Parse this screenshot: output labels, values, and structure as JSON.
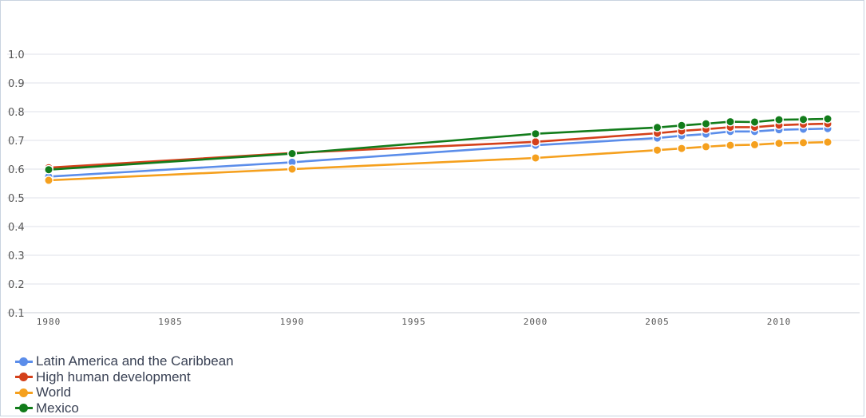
{
  "chart_data": {
    "type": "line",
    "x": [
      1980,
      1990,
      2000,
      2005,
      2006,
      2007,
      2008,
      2009,
      2010,
      2011,
      2012
    ],
    "series": [
      {
        "name": "Latin America and the Caribbean",
        "color": "#5b8dea",
        "values": [
          0.574,
          0.624,
          0.683,
          0.708,
          0.716,
          0.722,
          0.731,
          0.731,
          0.737,
          0.739,
          0.741
        ]
      },
      {
        "name": "High human development",
        "color": "#d4401b",
        "values": [
          0.605,
          0.656,
          0.695,
          0.725,
          0.733,
          0.739,
          0.746,
          0.746,
          0.753,
          0.756,
          0.758
        ]
      },
      {
        "name": "World",
        "color": "#f5a01e",
        "values": [
          0.561,
          0.6,
          0.639,
          0.666,
          0.672,
          0.678,
          0.683,
          0.685,
          0.69,
          0.692,
          0.694
        ]
      },
      {
        "name": "Mexico",
        "color": "#127c1b",
        "values": [
          0.598,
          0.654,
          0.723,
          0.745,
          0.752,
          0.758,
          0.765,
          0.764,
          0.772,
          0.773,
          0.775
        ]
      }
    ],
    "y_ticks": [
      "0.1",
      "0.2",
      "0.3",
      "0.4",
      "0.5",
      "0.6",
      "0.7",
      "0.8",
      "0.9",
      "1.0"
    ],
    "x_ticks": [
      "1980",
      "1985",
      "1990",
      "1995",
      "2000",
      "2005",
      "2010"
    ],
    "ylim": [
      0.1,
      1.0
    ],
    "xlim": [
      1980,
      2012
    ],
    "grid": true,
    "legend_position": "bottom-left",
    "title": "",
    "xlabel": "",
    "ylabel": ""
  }
}
